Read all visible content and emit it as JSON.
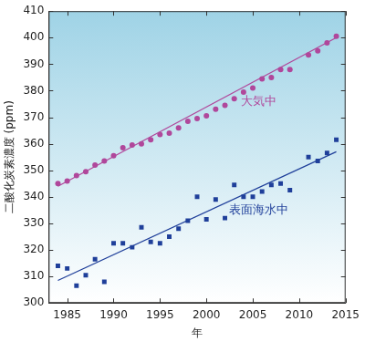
{
  "chart_data": {
    "type": "scatter",
    "x_label": "年",
    "y_label": "二酸化炭素濃度 (ppm)",
    "xlim": [
      1983,
      2015
    ],
    "xticks": [
      1985,
      1990,
      1995,
      2000,
      2005,
      2010,
      2015
    ],
    "ylim": [
      300,
      410
    ],
    "yticks": [
      300,
      310,
      320,
      330,
      340,
      350,
      360,
      370,
      380,
      390,
      400,
      410
    ],
    "grid": false,
    "series": [
      {
        "name": "大気中",
        "color": "#b0479b",
        "marker": "circle",
        "x": [
          1984,
          1985,
          1986,
          1987,
          1988,
          1989,
          1990,
          1991,
          1992,
          1993,
          1994,
          1995,
          1996,
          1997,
          1998,
          1999,
          2000,
          2001,
          2002,
          2003,
          2004,
          2005,
          2006,
          2007,
          2008,
          2009,
          2011,
          2012,
          2013,
          2014
        ],
        "values": [
          345,
          346,
          348,
          349.5,
          352,
          353.5,
          355.5,
          358.5,
          359.5,
          360,
          361.5,
          363.5,
          364,
          366,
          368.5,
          369.5,
          370.5,
          373,
          374.5,
          377,
          379.5,
          381,
          384.5,
          385,
          388,
          388,
          393.5,
          395,
          398,
          400.5
        ],
        "trend": {
          "x": [
            1984,
            2014
          ],
          "values": [
            344,
            400
          ]
        }
      },
      {
        "name": "表面海水中",
        "color": "#1f3f9a",
        "marker": "square",
        "x": [
          1984,
          1985,
          1986,
          1987,
          1988,
          1989,
          1990,
          1991,
          1992,
          1993,
          1994,
          1995,
          1996,
          1997,
          1998,
          1999,
          2000,
          2001,
          2002,
          2003,
          2004,
          2005,
          2006,
          2007,
          2008,
          2009,
          2011,
          2012,
          2013,
          2014
        ],
        "values": [
          314,
          313,
          306.5,
          310.5,
          316.5,
          308,
          322.5,
          322.5,
          321,
          328.5,
          323,
          322.5,
          325,
          328,
          331,
          340,
          331.5,
          339,
          332,
          344.5,
          340,
          340,
          342,
          344.5,
          345,
          342.5,
          355,
          353.5,
          356.5,
          361.5
        ],
        "trend": {
          "x": [
            1984,
            2014
          ],
          "values": [
            308.5,
            357
          ]
        }
      }
    ]
  }
}
